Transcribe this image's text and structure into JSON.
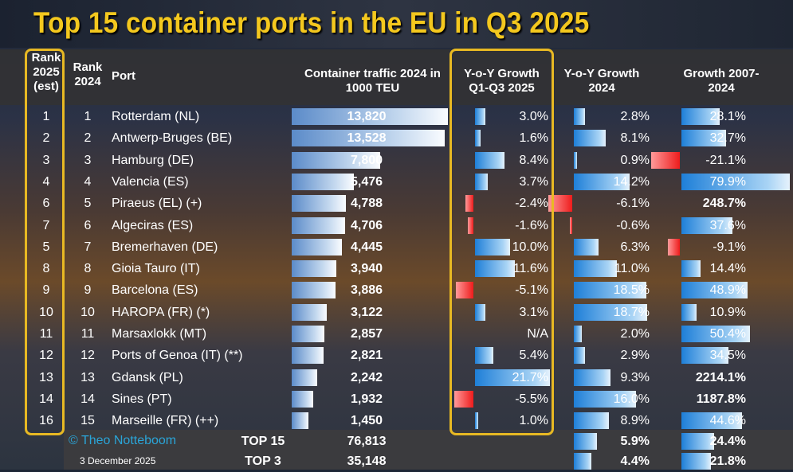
{
  "title": "Top 15 container ports in the EU in Q3 2025",
  "headers": {
    "rank2025": "Rank 2025 (est)",
    "rank2024": "Rank 2024",
    "port": "Port",
    "traffic": "Container traffic 2024 in 1000 TEU",
    "yoy25": "Y-o-Y Growth Q1-Q3 2025",
    "yoy24": "Y-o-Y Growth 2024",
    "growth": "Growth 2007-2024"
  },
  "chart_data": {
    "type": "table",
    "title": "Top 15 container ports in the EU in Q3 2025",
    "columns": [
      "Rank 2025 (est)",
      "Rank 2024",
      "Port",
      "Container traffic 2024 in 1000 TEU",
      "Y-o-Y Growth Q1-Q3 2025",
      "Y-o-Y Growth 2024",
      "Growth 2007-2024"
    ],
    "rows": [
      {
        "r25": "1",
        "r24": "1",
        "port": "Rotterdam (NL)",
        "traffic": 13820,
        "traffic_label": "13,820",
        "yoy25": 3.0,
        "yoy25_label": "3.0%",
        "yoy24": 2.8,
        "yoy24_label": "2.8%",
        "growth": 28.1,
        "growth_label": "28.1%"
      },
      {
        "r25": "2",
        "r24": "2",
        "port": "Antwerp-Bruges (BE)",
        "traffic": 13528,
        "traffic_label": "13,528",
        "yoy25": 1.6,
        "yoy25_label": "1.6%",
        "yoy24": 8.1,
        "yoy24_label": "8.1%",
        "growth": 32.7,
        "growth_label": "32.7%"
      },
      {
        "r25": "3",
        "r24": "3",
        "port": "Hamburg (DE)",
        "traffic": 7800,
        "traffic_label": "7,800",
        "yoy25": 8.4,
        "yoy25_label": "8.4%",
        "yoy24": 0.9,
        "yoy24_label": "0.9%",
        "growth": -21.1,
        "growth_label": "-21.1%"
      },
      {
        "r25": "4",
        "r24": "4",
        "port": "Valencia (ES)",
        "traffic": 5476,
        "traffic_label": "5,476",
        "yoy25": 3.7,
        "yoy25_label": "3.7%",
        "yoy24": 14.2,
        "yoy24_label": "14.2%",
        "growth": 79.9,
        "growth_label": "79.9%"
      },
      {
        "r25": "6",
        "r24": "5",
        "port": "Piraeus (EL) (+)",
        "traffic": 4788,
        "traffic_label": "4,788",
        "yoy25": -2.4,
        "yoy25_label": "-2.4%",
        "yoy24": -6.1,
        "yoy24_label": "-6.1%",
        "growth": 248.7,
        "growth_label": "248.7%"
      },
      {
        "r25": "7",
        "r24": "6",
        "port": "Algeciras (ES)",
        "traffic": 4706,
        "traffic_label": "4,706",
        "yoy25": -1.6,
        "yoy25_label": "-1.6%",
        "yoy24": -0.6,
        "yoy24_label": "-0.6%",
        "growth": 37.6,
        "growth_label": "37.6%"
      },
      {
        "r25": "5",
        "r24": "7",
        "port": "Bremerhaven (DE)",
        "traffic": 4445,
        "traffic_label": "4,445",
        "yoy25": 10.0,
        "yoy25_label": "10.0%",
        "yoy24": 6.3,
        "yoy24_label": "6.3%",
        "growth": -9.1,
        "growth_label": "-9.1%"
      },
      {
        "r25": "8",
        "r24": "8",
        "port": "Gioia Tauro (IT)",
        "traffic": 3940,
        "traffic_label": "3,940",
        "yoy25": 11.6,
        "yoy25_label": "11.6%",
        "yoy24": 11.0,
        "yoy24_label": "11.0%",
        "growth": 14.4,
        "growth_label": "14.4%"
      },
      {
        "r25": "9",
        "r24": "9",
        "port": "Barcelona (ES)",
        "traffic": 3886,
        "traffic_label": "3,886",
        "yoy25": -5.1,
        "yoy25_label": "-5.1%",
        "yoy24": 18.5,
        "yoy24_label": "18.5%",
        "growth": 48.9,
        "growth_label": "48.9%"
      },
      {
        "r25": "10",
        "r24": "10",
        "port": "HAROPA (FR) (*)",
        "traffic": 3122,
        "traffic_label": "3,122",
        "yoy25": 3.1,
        "yoy25_label": "3.1%",
        "yoy24": 18.7,
        "yoy24_label": "18.7%",
        "growth": 10.9,
        "growth_label": "10.9%"
      },
      {
        "r25": "11",
        "r24": "11",
        "port": "Marsaxlokk (MT)",
        "traffic": 2857,
        "traffic_label": "2,857",
        "yoy25": null,
        "yoy25_label": "N/A",
        "yoy24": 2.0,
        "yoy24_label": "2.0%",
        "growth": 50.4,
        "growth_label": "50.4%"
      },
      {
        "r25": "12",
        "r24": "12",
        "port": "Ports of Genoa (IT) (**)",
        "traffic": 2821,
        "traffic_label": "2,821",
        "yoy25": 5.4,
        "yoy25_label": "5.4%",
        "yoy24": 2.9,
        "yoy24_label": "2.9%",
        "growth": 34.5,
        "growth_label": "34.5%"
      },
      {
        "r25": "13",
        "r24": "13",
        "port": "Gdansk (PL)",
        "traffic": 2242,
        "traffic_label": "2,242",
        "yoy25": 21.7,
        "yoy25_label": "21.7%",
        "yoy24": 9.3,
        "yoy24_label": "9.3%",
        "growth": 2214.1,
        "growth_label": "2214.1%"
      },
      {
        "r25": "14",
        "r24": "14",
        "port": "Sines (PT)",
        "traffic": 1932,
        "traffic_label": "1,932",
        "yoy25": -5.5,
        "yoy25_label": "-5.5%",
        "yoy24": 16.0,
        "yoy24_label": "16.0%",
        "growth": 1187.8,
        "growth_label": "1187.8%"
      },
      {
        "r25": "16",
        "r24": "15",
        "port": "Marseille (FR) (++)",
        "traffic": 1450,
        "traffic_label": "1,450",
        "yoy25": 1.0,
        "yoy25_label": "1.0%",
        "yoy24": 8.9,
        "yoy24_label": "8.9%",
        "growth": 44.6,
        "growth_label": "44.6%"
      }
    ],
    "totals": [
      {
        "label": "TOP 15",
        "traffic_label": "76,813",
        "yoy24": 5.9,
        "yoy24_label": "5.9%",
        "growth": 24.4,
        "growth_label": "24.4%"
      },
      {
        "label": "TOP 3",
        "traffic_label": "35,148",
        "yoy24": 4.4,
        "yoy24_label": "4.4%",
        "growth": 21.8,
        "growth_label": "21.8%"
      }
    ]
  },
  "footer": {
    "copyright": "© Theo Notteboom",
    "date": "3 December 2025"
  },
  "colors": {
    "title": "#f4c81e",
    "highlight": "#e8b923",
    "positive": "#1e7fd8",
    "negative": "#ee1c1c"
  }
}
